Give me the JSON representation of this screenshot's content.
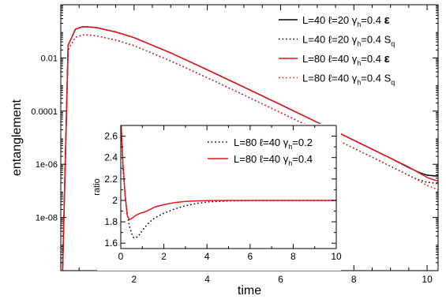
{
  "chart_data": [
    {
      "type": "line",
      "xlabel": "time",
      "ylabel": "entanglement",
      "xlim": [
        0,
        10.3
      ],
      "ylim": [
        1e-10,
        1
      ],
      "yscale": "log",
      "grid": false,
      "legend_position": "top-right",
      "xticks": [
        2,
        4,
        6,
        8,
        10
      ],
      "yticks": [
        {
          "value": 0.01,
          "label": "0.01"
        },
        {
          "value": 0.0001,
          "label": "0.0001"
        },
        {
          "value": 1e-06,
          "label": "1e-06"
        },
        {
          "value": 1e-08,
          "label": "1e-08"
        }
      ],
      "series": [
        {
          "name": "L=40 ℓ=20 γh=0.4 ε",
          "legend": {
            "main": "L=40 ℓ=20 γ",
            "sub": "h",
            "tail": "=0.4 ",
            "sym": "ε",
            "symsub": ""
          },
          "color": "#000000",
          "style": "solid",
          "x": [
            0.05,
            0.2,
            0.4,
            0.6,
            0.8,
            1.0,
            1.5,
            2,
            3,
            4,
            5,
            6,
            7,
            8,
            9,
            9.5,
            9.8,
            10,
            10.3
          ],
          "y": [
            1e-10,
            0.03,
            0.12,
            0.15,
            0.145,
            0.135,
            0.095,
            0.058,
            0.0155,
            0.0036,
            0.0008,
            0.000175,
            3.8e-05,
            8e-06,
            1.7e-06,
            7.5e-07,
            4.8e-07,
            3.9e-07,
            3.6e-07
          ]
        },
        {
          "name": "L=40 ℓ=20 γh=0.4 Sq",
          "legend": {
            "main": "L=40 ℓ=20 γ",
            "sub": "h",
            "tail": "=0.4 ",
            "sym": "S",
            "symsub": "q"
          },
          "color": "#000000",
          "style": "dotted",
          "x": [
            0.05,
            0.2,
            0.4,
            0.6,
            0.8,
            1.0,
            1.5,
            2,
            3,
            4,
            5,
            6,
            7,
            8,
            9,
            9.5,
            9.8,
            10,
            10.3
          ],
          "y": [
            1e-10,
            0.02,
            0.06,
            0.073,
            0.072,
            0.067,
            0.047,
            0.029,
            0.0077,
            0.0018,
            0.0004,
            8.8e-05,
            1.9e-05,
            4e-06,
            8.5e-07,
            3.8e-07,
            2.5e-07,
            2.1e-07,
            1.9e-07
          ]
        },
        {
          "name": "L=80 ℓ=40 γh=0.4 ε",
          "legend": {
            "main": "L=80 ℓ=40 γ",
            "sub": "h",
            "tail": "=0.4 ",
            "sym": "ε",
            "symsub": ""
          },
          "color": "#e8141a",
          "style": "solid",
          "x": [
            0.05,
            0.2,
            0.4,
            0.6,
            0.8,
            1.0,
            1.5,
            2,
            3,
            4,
            5,
            6,
            7,
            8,
            9,
            9.5,
            9.8,
            10,
            10.3
          ],
          "y": [
            1e-10,
            0.03,
            0.12,
            0.15,
            0.145,
            0.135,
            0.095,
            0.058,
            0.0155,
            0.0036,
            0.0008,
            0.000175,
            3.8e-05,
            8e-06,
            1.7e-06,
            7.8e-07,
            4.6e-07,
            3.2e-07,
            2.3e-07
          ]
        },
        {
          "name": "L=80 ℓ=40 γh=0.4 Sq",
          "legend": {
            "main": "L=80 ℓ=40 γ",
            "sub": "h",
            "tail": "=0.4 ",
            "sym": "S",
            "symsub": "q"
          },
          "color": "#e8141a",
          "style": "dotted",
          "x": [
            0.05,
            0.2,
            0.4,
            0.6,
            0.8,
            1.0,
            1.5,
            2,
            3,
            4,
            5,
            6,
            7,
            8,
            9,
            9.5,
            9.8,
            10,
            10.3
          ],
          "y": [
            1e-10,
            0.02,
            0.06,
            0.073,
            0.072,
            0.067,
            0.047,
            0.029,
            0.0077,
            0.0018,
            0.0004,
            8.8e-05,
            1.9e-05,
            4e-06,
            8.5e-07,
            3.9e-07,
            2.3e-07,
            1.6e-07,
            1.1e-07
          ]
        }
      ]
    },
    {
      "type": "line",
      "inset": true,
      "xlabel": "",
      "ylabel": "ratio",
      "xlim": [
        0,
        10
      ],
      "ylim": [
        1.55,
        2.7
      ],
      "grid": false,
      "legend_position": "top-right",
      "xticks": [
        0,
        2,
        4,
        6,
        8,
        10
      ],
      "yticks": [
        1.6,
        1.8,
        2,
        2.2,
        2.4,
        2.6
      ],
      "ytick_labels": [
        "1.6",
        "1.8",
        "2",
        "2.2",
        "2.4",
        "2.6"
      ],
      "series": [
        {
          "name": "L=80 ℓ=40 γh=0.2",
          "legend": {
            "main": "L=80 ℓ=40 γ",
            "sub": "h",
            "tail": "=0.2"
          },
          "color": "#000000",
          "style": "dotted",
          "x": [
            0.02,
            0.1,
            0.2,
            0.3,
            0.4,
            0.5,
            0.6,
            0.8,
            1.0,
            1.3,
            1.6,
            2,
            2.5,
            3,
            3.5,
            4,
            5,
            6,
            7,
            8,
            9,
            10
          ],
          "y": [
            2.7,
            2.3,
            2.05,
            1.87,
            1.76,
            1.69,
            1.65,
            1.66,
            1.72,
            1.79,
            1.84,
            1.88,
            1.92,
            1.95,
            1.97,
            1.985,
            1.995,
            1.998,
            1.999,
            2.0,
            2.0,
            2.0
          ]
        },
        {
          "name": "L=80 ℓ=40 γh=0.4",
          "legend": {
            "main": "L=80 ℓ=40 γ",
            "sub": "h",
            "tail": "=0.4"
          },
          "color": "#e8141a",
          "style": "solid",
          "x": [
            0.02,
            0.1,
            0.2,
            0.3,
            0.4,
            0.5,
            0.7,
            0.9,
            1.1,
            1.3,
            1.6,
            2,
            2.5,
            3,
            3.5,
            4,
            5,
            6,
            7,
            8,
            9,
            10
          ],
          "y": [
            2.7,
            2.35,
            2.05,
            1.86,
            1.82,
            1.83,
            1.86,
            1.88,
            1.89,
            1.91,
            1.94,
            1.96,
            1.98,
            1.99,
            1.995,
            1.998,
            2.0,
            2.0,
            2.0,
            2.0,
            2.0,
            2.0
          ]
        }
      ]
    }
  ]
}
